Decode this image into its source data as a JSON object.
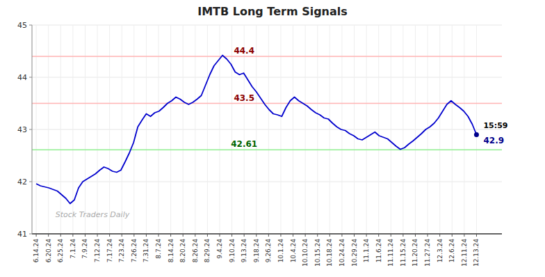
{
  "chart_data": {
    "type": "line",
    "title": "IMTB Long Term Signals",
    "color": "#0000CD",
    "grid": true,
    "ylim": [
      41,
      45
    ],
    "yticks": [
      41,
      42,
      43,
      44,
      45
    ],
    "xlim": [
      -1,
      110
    ],
    "xticks": [
      {
        "value": 0,
        "label": "6.14.24"
      },
      {
        "value": 2.8889,
        "label": "6.20.24"
      },
      {
        "value": 5.7778,
        "label": "6.25.24"
      },
      {
        "value": 8.6667,
        "label": "7.1.24"
      },
      {
        "value": 11.5556,
        "label": "7.9.24"
      },
      {
        "value": 14.4444,
        "label": "7.12.24"
      },
      {
        "value": 17.3333,
        "label": "7.17.24"
      },
      {
        "value": 20.2222,
        "label": "7.23.24"
      },
      {
        "value": 23.1111,
        "label": "7.26.24"
      },
      {
        "value": 26,
        "label": "7.31.24"
      },
      {
        "value": 28.8889,
        "label": "8.7.24"
      },
      {
        "value": 31.7778,
        "label": "8.14.24"
      },
      {
        "value": 34.6667,
        "label": "8.20.24"
      },
      {
        "value": 37.5556,
        "label": "8.26.24"
      },
      {
        "value": 40.4444,
        "label": "8.29.24"
      },
      {
        "value": 43.3333,
        "label": "9.4.24"
      },
      {
        "value": 46.2222,
        "label": "9.10.24"
      },
      {
        "value": 49.1111,
        "label": "9.13.24"
      },
      {
        "value": 52,
        "label": "9.18.24"
      },
      {
        "value": 54.8889,
        "label": "9.26.24"
      },
      {
        "value": 57.7778,
        "label": "10.1.24"
      },
      {
        "value": 60.6667,
        "label": "10.4.24"
      },
      {
        "value": 63.5556,
        "label": "10.10.24"
      },
      {
        "value": 66.4444,
        "label": "10.15.24"
      },
      {
        "value": 69.3333,
        "label": "10.18.24"
      },
      {
        "value": 72.2222,
        "label": "10.24.24"
      },
      {
        "value": 75.1111,
        "label": "10.29.24"
      },
      {
        "value": 78,
        "label": "11.1.24"
      },
      {
        "value": 80.8889,
        "label": "11.6.24"
      },
      {
        "value": 83.7778,
        "label": "11.11.24"
      },
      {
        "value": 86.6667,
        "label": "11.15.24"
      },
      {
        "value": 89.5556,
        "label": "11.20.24"
      },
      {
        "value": 92.4444,
        "label": "11.27.24"
      },
      {
        "value": 95.3333,
        "label": "12.3.24"
      },
      {
        "value": 98.2222,
        "label": "12.6.24"
      },
      {
        "value": 101.1111,
        "label": "12.11.24"
      },
      {
        "value": 104,
        "label": "12.13.24"
      }
    ],
    "values": [
      41.96,
      41.92,
      41.9,
      41.88,
      41.85,
      41.82,
      41.75,
      41.68,
      41.58,
      41.65,
      41.88,
      42.0,
      42.05,
      42.1,
      42.15,
      42.22,
      42.28,
      42.25,
      42.2,
      42.18,
      42.22,
      42.38,
      42.55,
      42.75,
      43.05,
      43.18,
      43.3,
      43.25,
      43.32,
      43.35,
      43.42,
      43.5,
      43.55,
      43.62,
      43.58,
      43.52,
      43.48,
      43.52,
      43.58,
      43.65,
      43.85,
      44.05,
      44.22,
      44.32,
      44.42,
      44.35,
      44.25,
      44.1,
      44.05,
      44.08,
      43.95,
      43.82,
      43.72,
      43.6,
      43.48,
      43.38,
      43.3,
      43.28,
      43.25,
      43.42,
      43.55,
      43.62,
      43.55,
      43.5,
      43.45,
      43.38,
      43.32,
      43.28,
      43.22,
      43.2,
      43.12,
      43.05,
      43.0,
      42.98,
      42.92,
      42.88,
      42.82,
      42.8,
      42.85,
      42.9,
      42.95,
      42.88,
      42.85,
      42.82,
      42.75,
      42.68,
      42.62,
      42.65,
      42.72,
      42.78,
      42.85,
      42.92,
      43.0,
      43.05,
      43.12,
      43.22,
      43.35,
      43.48,
      43.55,
      43.48,
      43.42,
      43.35,
      43.25,
      43.1,
      42.9
    ],
    "reference_lines": [
      {
        "value": 44.4,
        "label": "44.4",
        "color": "#ffb3b3",
        "label_color": "#8B0000"
      },
      {
        "value": 43.5,
        "label": "43.5",
        "color": "#ffb3b3",
        "label_color": "#8B0000"
      },
      {
        "value": 42.61,
        "label": "42.61",
        "color": "#90EE90",
        "label_color": "#006400"
      }
    ],
    "end_label": {
      "time": "15:59",
      "price": "42.9",
      "price_value": 42.9,
      "color": "#00008B"
    },
    "watermark": {
      "text": "Stock Traders Daily",
      "color": "#aaaaaa"
    }
  }
}
